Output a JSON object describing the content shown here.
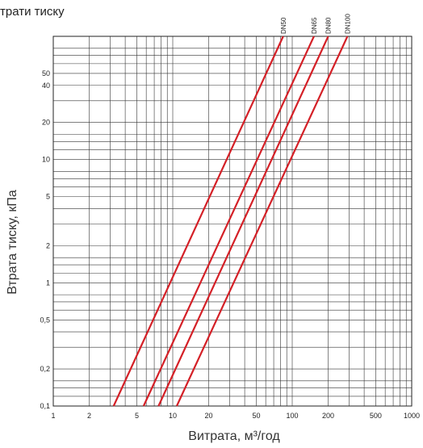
{
  "chart_data": {
    "type": "line",
    "title": "трати тиску",
    "xlabel": "Витрата,  м³/год",
    "ylabel": "Втрата тиску, кПа",
    "x_scale": "log",
    "y_scale": "log",
    "xlim": [
      1,
      1000
    ],
    "ylim": [
      0.1,
      100
    ],
    "x_ticks": [
      {
        "value": 1,
        "label": "1"
      },
      {
        "value": 2,
        "label": "2"
      },
      {
        "value": 5,
        "label": "5"
      },
      {
        "value": 10,
        "label": "10"
      },
      {
        "value": 20,
        "label": "20"
      },
      {
        "value": 50,
        "label": "50"
      },
      {
        "value": 100,
        "label": "100"
      },
      {
        "value": 200,
        "label": "200"
      },
      {
        "value": 500,
        "label": "500"
      },
      {
        "value": 1000,
        "label": "1000"
      }
    ],
    "y_ticks": [
      {
        "value": 0.1,
        "label": "0,1"
      },
      {
        "value": 0.2,
        "label": "0,2"
      },
      {
        "value": 0.5,
        "label": "0,5"
      },
      {
        "value": 1,
        "label": "1"
      },
      {
        "value": 2,
        "label": "2"
      },
      {
        "value": 5,
        "label": "5"
      },
      {
        "value": 10,
        "label": "10"
      },
      {
        "value": 20,
        "label": "20"
      },
      {
        "value": 40,
        "label": "40"
      },
      {
        "value": 50,
        "label": "50"
      }
    ],
    "x_gridlines": [
      1,
      2,
      3,
      4,
      5,
      6,
      7,
      8,
      9,
      10,
      20,
      30,
      40,
      50,
      60,
      70,
      80,
      90,
      100,
      200,
      300,
      400,
      500,
      600,
      700,
      800,
      900,
      1000
    ],
    "y_gridlines": [
      0.1,
      0.12,
      0.14,
      0.16,
      0.2,
      0.3,
      0.4,
      0.5,
      0.6,
      0.7,
      0.8,
      1,
      1.2,
      1.4,
      1.6,
      2,
      3,
      4,
      5,
      6,
      7,
      8,
      10,
      12,
      14,
      16,
      20,
      30,
      40,
      50,
      60,
      70,
      80,
      100
    ],
    "grid": true,
    "line_color": "#d42027",
    "series": [
      {
        "name": "DN50",
        "points": [
          [
            3.2,
            0.1
          ],
          [
            84,
            100
          ]
        ]
      },
      {
        "name": "DN65",
        "points": [
          [
            5.7,
            0.1
          ],
          [
            152,
            100
          ]
        ]
      },
      {
        "name": "DN80",
        "points": [
          [
            7.6,
            0.1
          ],
          [
            200,
            100
          ]
        ]
      },
      {
        "name": "DN100",
        "points": [
          [
            10.8,
            0.1
          ],
          [
            290,
            100
          ]
        ]
      }
    ]
  }
}
